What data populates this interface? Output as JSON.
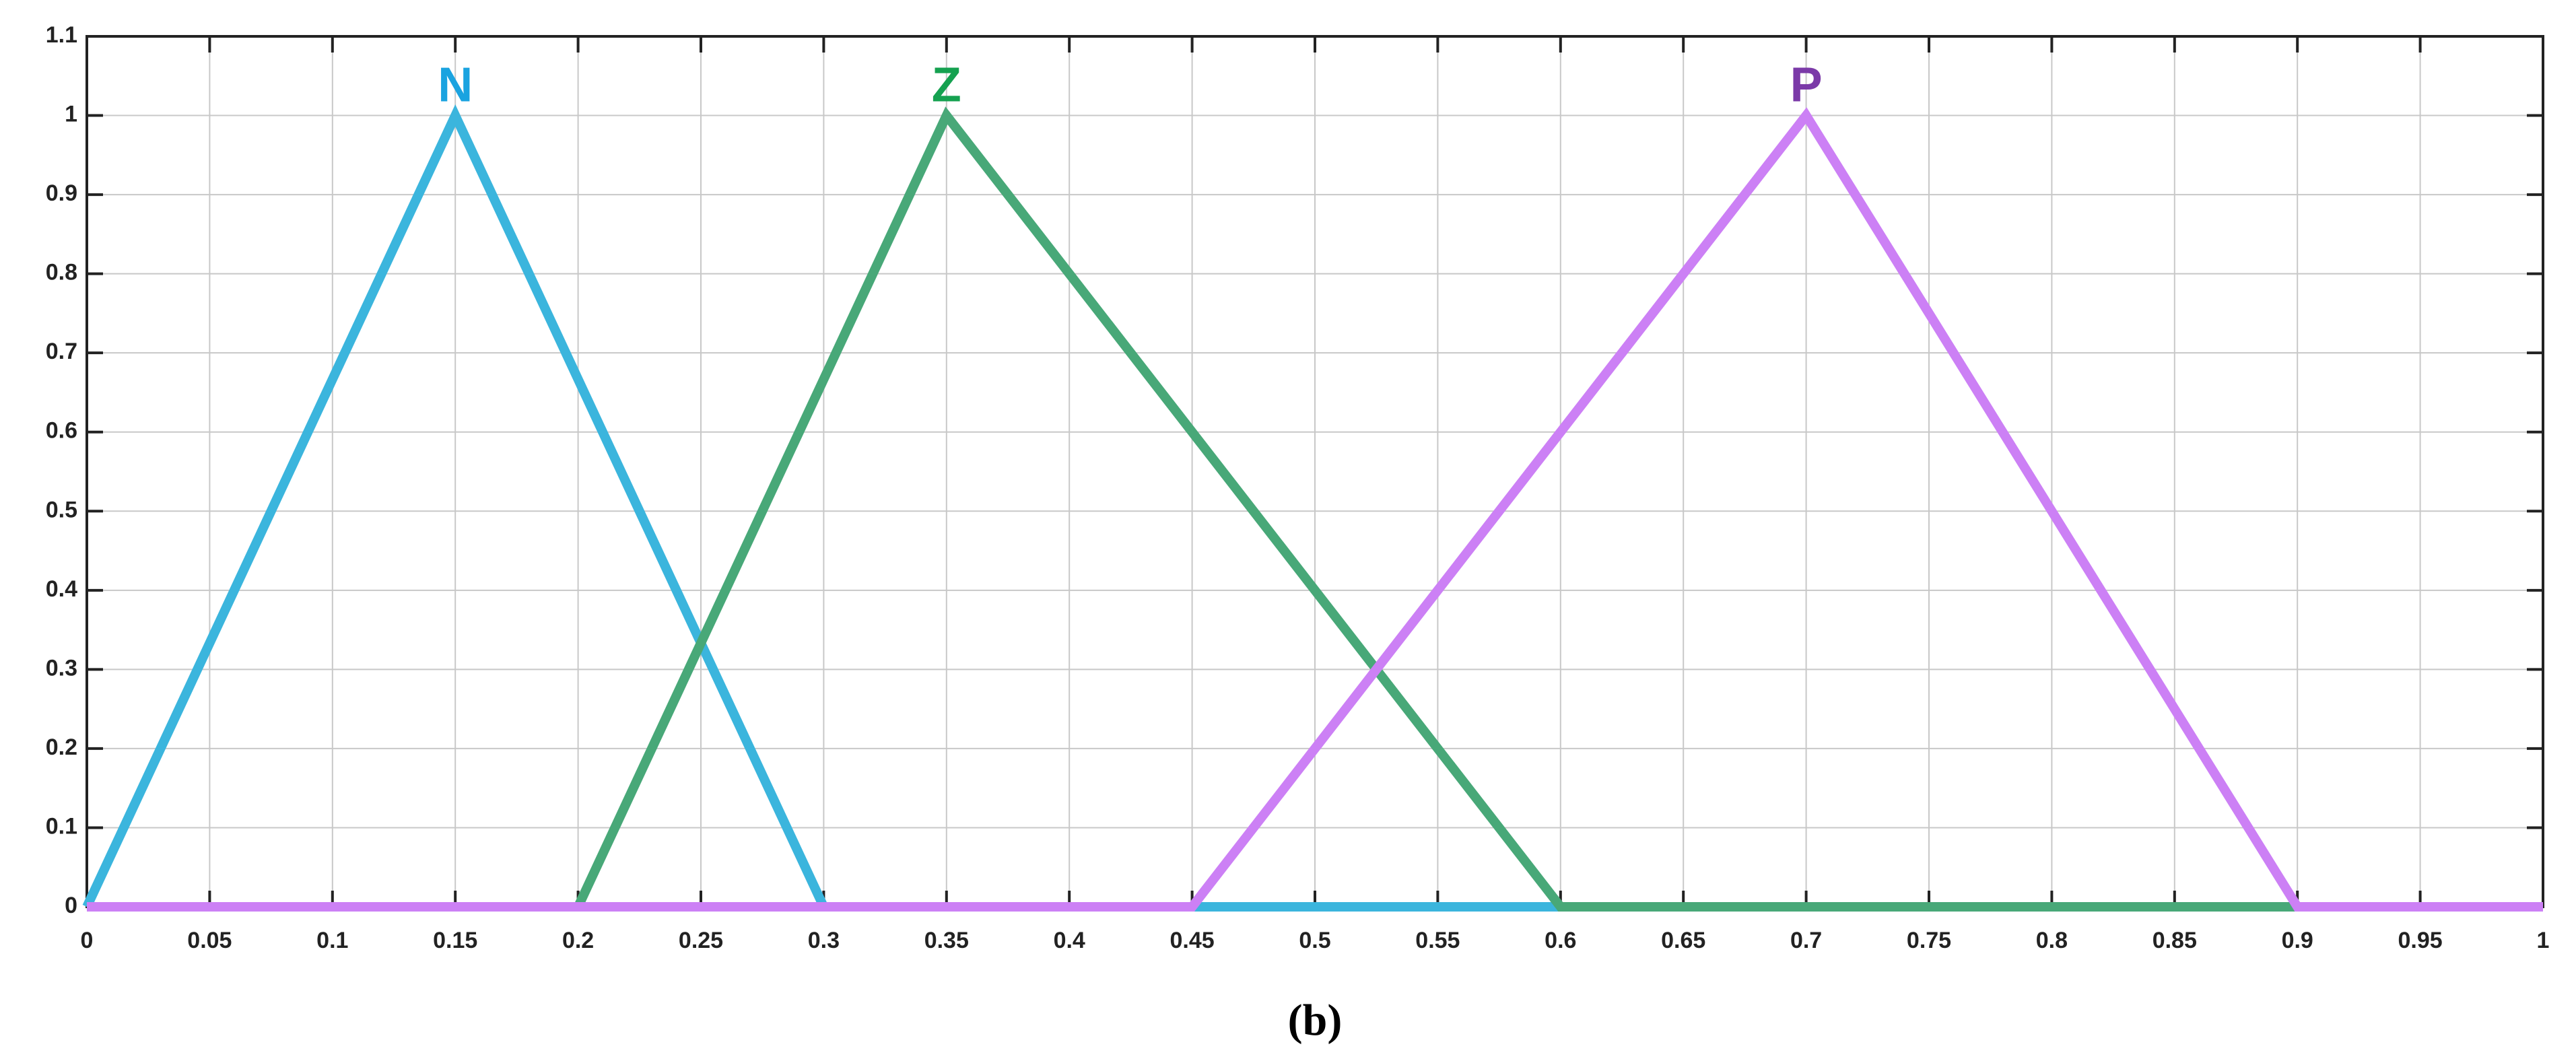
{
  "chart_data": {
    "type": "line",
    "caption": "(b)",
    "xlim": [
      0,
      1
    ],
    "ylim": [
      0,
      1.1
    ],
    "xticks": [
      0,
      0.05,
      0.1,
      0.15,
      0.2,
      0.25,
      0.3,
      0.35,
      0.4,
      0.45,
      0.5,
      0.55,
      0.6,
      0.65,
      0.7,
      0.75,
      0.8,
      0.85,
      0.9,
      0.95,
      1
    ],
    "yticks": [
      0,
      0.1,
      0.2,
      0.3,
      0.4,
      0.5,
      0.6,
      0.7,
      0.8,
      0.9,
      1,
      1.1
    ],
    "grid": true,
    "series": [
      {
        "name": "N",
        "color": "#3bb5dd",
        "label_color": "#1aa3e0",
        "x": [
          0,
          0.15,
          0.3,
          1
        ],
        "values": [
          0,
          1,
          0,
          0
        ]
      },
      {
        "name": "Z",
        "color": "#48a878",
        "label_color": "#15a150",
        "x": [
          0,
          0.2,
          0.35,
          0.6,
          1
        ],
        "values": [
          0,
          0,
          1,
          0,
          0
        ]
      },
      {
        "name": "P",
        "color": "#cc80f5",
        "label_color": "#7b3aa8",
        "x": [
          0,
          0.45,
          0.7,
          0.9,
          1
        ],
        "values": [
          0,
          0,
          1,
          0,
          0
        ]
      }
    ]
  }
}
